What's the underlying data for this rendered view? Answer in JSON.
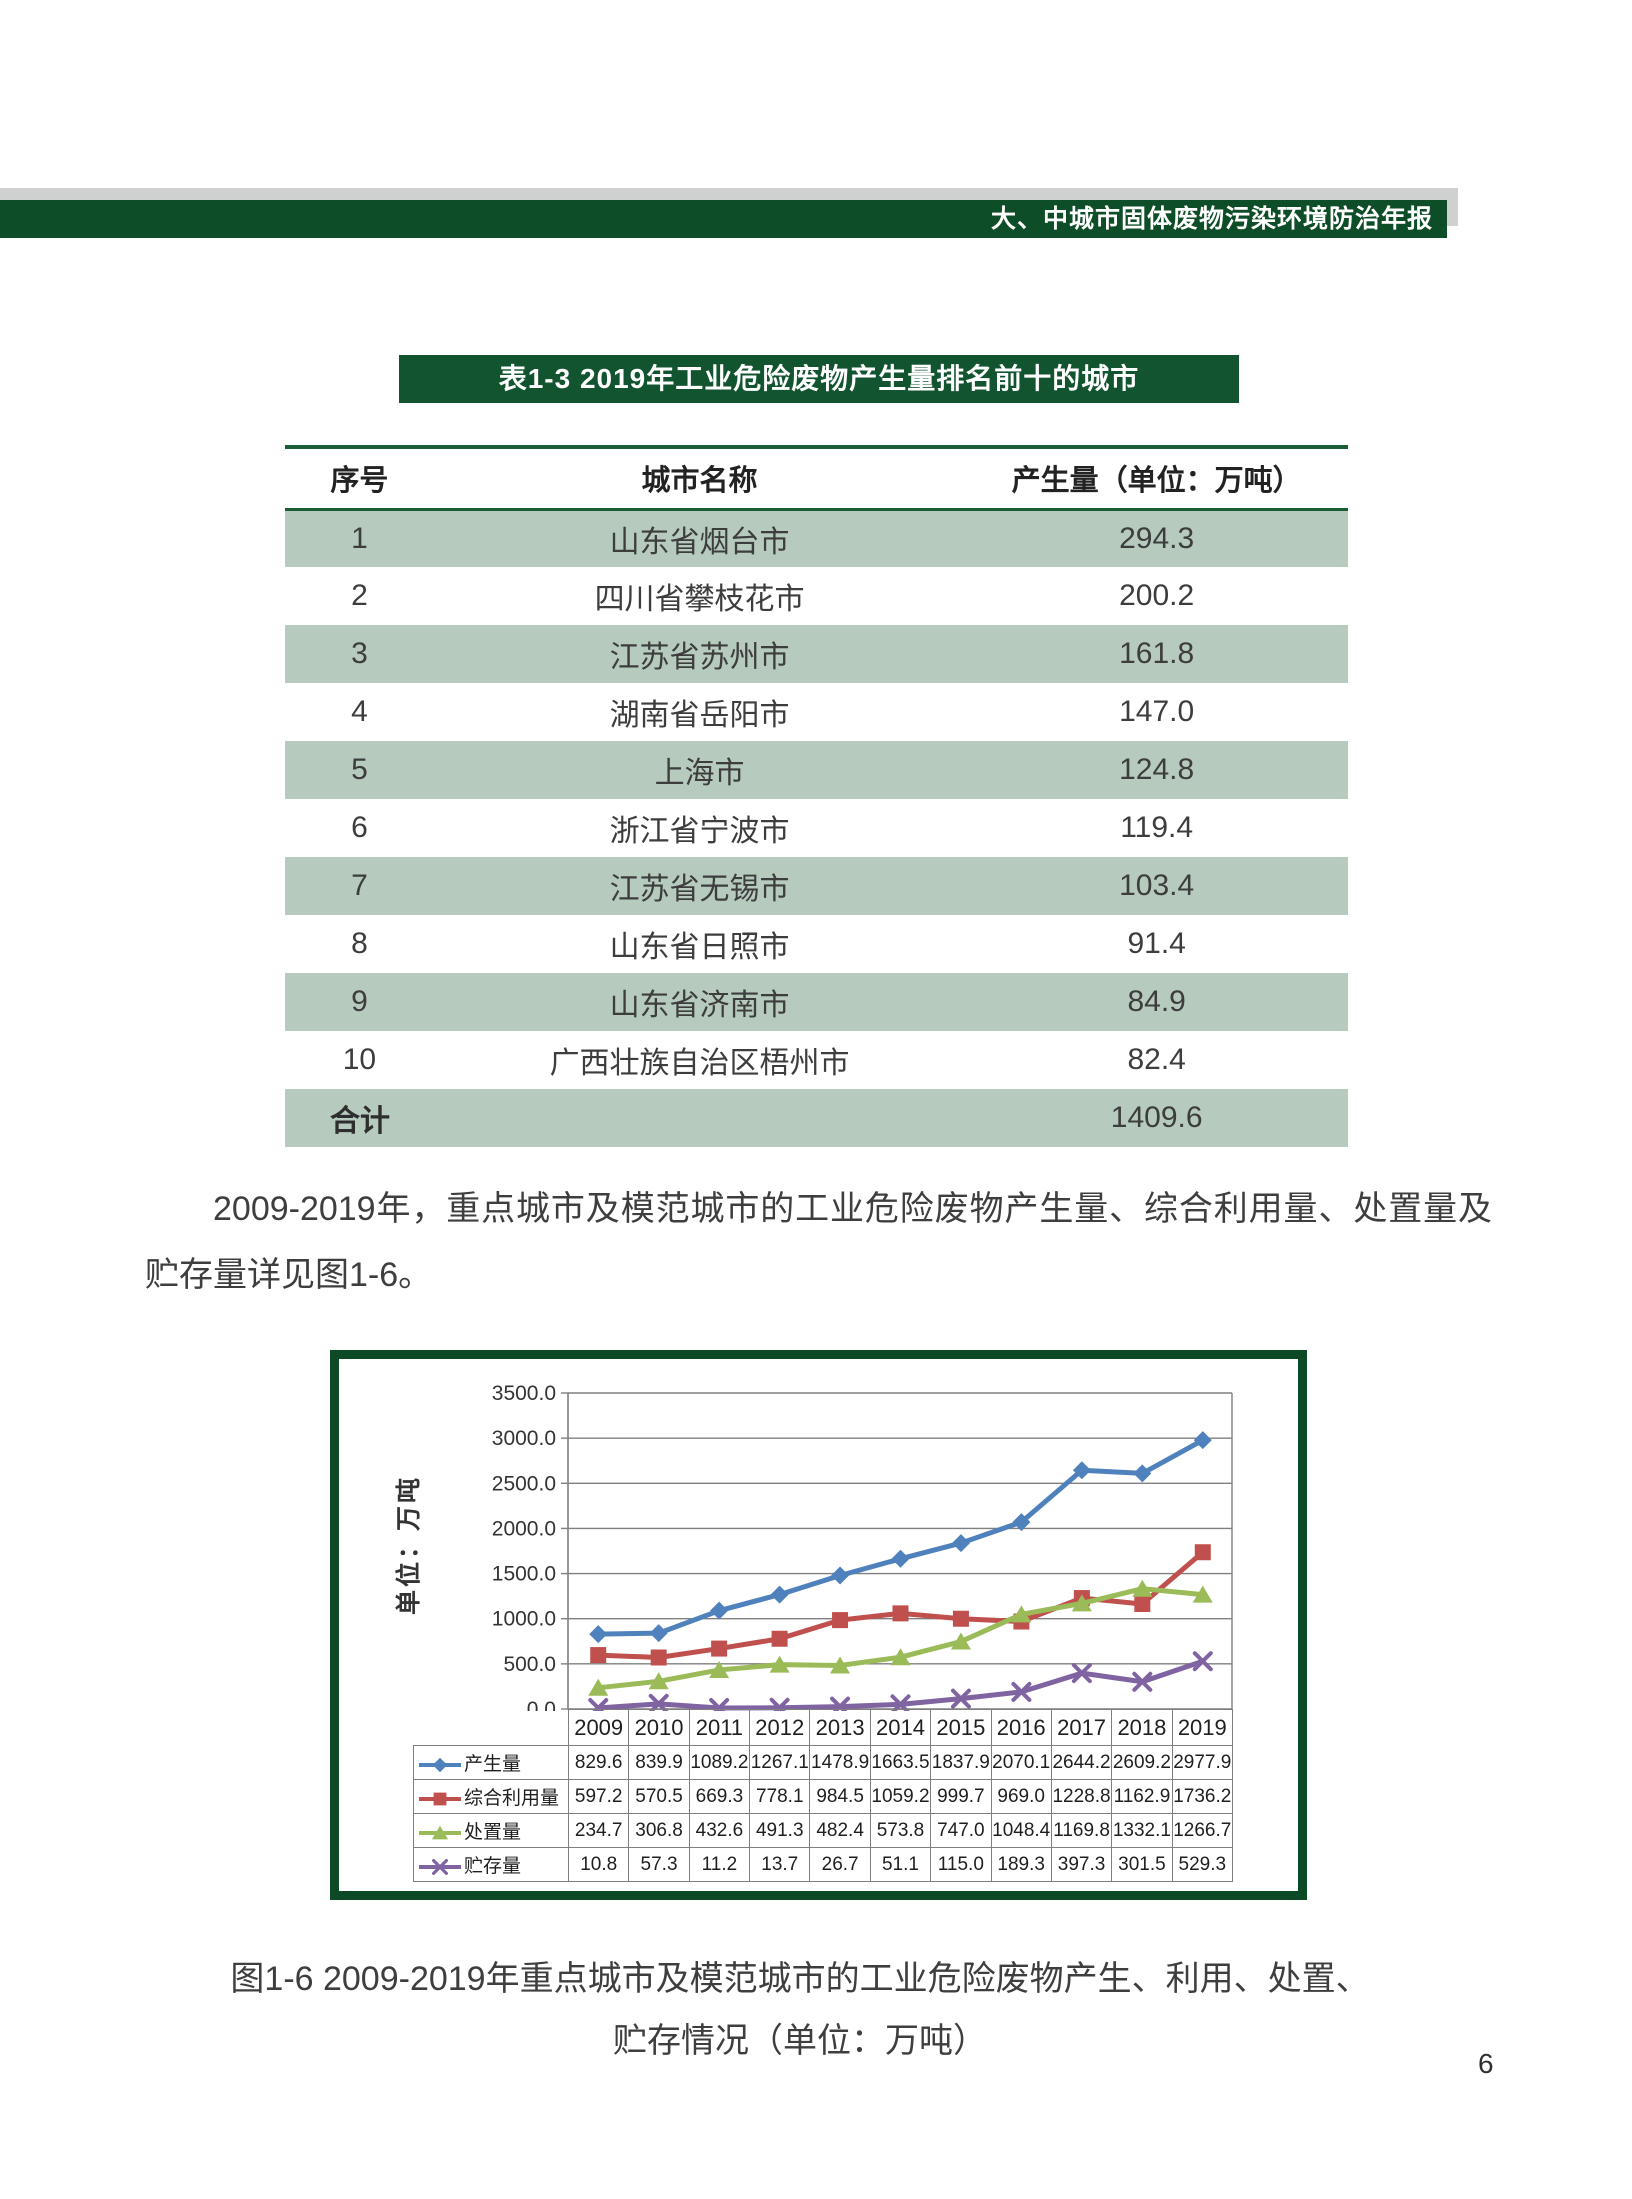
{
  "header": {
    "title": "大、中城市固体废物污染环境防治年报"
  },
  "colors": {
    "dark_green": "#0d4d27",
    "light_green_row": "#b6cbbe",
    "header_gray": "#cfd1d0"
  },
  "table": {
    "title": "表1-3 2019年工业危险废物产生量排名前十的城市",
    "columns": [
      "序号",
      "城市名称",
      "产生量（单位：万吨）"
    ],
    "rows": [
      [
        "1",
        "山东省烟台市",
        "294.3"
      ],
      [
        "2",
        "四川省攀枝花市",
        "200.2"
      ],
      [
        "3",
        "江苏省苏州市",
        "161.8"
      ],
      [
        "4",
        "湖南省岳阳市",
        "147.0"
      ],
      [
        "5",
        "上海市",
        "124.8"
      ],
      [
        "6",
        "浙江省宁波市",
        "119.4"
      ],
      [
        "7",
        "江苏省无锡市",
        "103.4"
      ],
      [
        "8",
        "山东省日照市",
        "91.4"
      ],
      [
        "9",
        "山东省济南市",
        "84.9"
      ],
      [
        "10",
        "广西壮族自治区梧州市",
        "82.4"
      ]
    ],
    "total_label": "合计",
    "total_value": "1409.6"
  },
  "paragraph": "2009-2019年，重点城市及模范城市的工业危险废物产生量、综合利用量、处置量及贮存量详见图1-6。",
  "chart_data": {
    "type": "line",
    "title": "",
    "y_axis_title": "单位：万吨",
    "categories": [
      "2009",
      "2010",
      "2011",
      "2012",
      "2013",
      "2014",
      "2015",
      "2016",
      "2017",
      "2018",
      "2019"
    ],
    "series": [
      {
        "name": "产生量",
        "marker": "diamond",
        "color": "#4f81bd",
        "values": [
          829.6,
          839.9,
          1089.2,
          1267.1,
          1478.9,
          1663.5,
          1837.9,
          2070.1,
          2644.2,
          2609.2,
          2977.9
        ]
      },
      {
        "name": "综合利用量",
        "marker": "square",
        "color": "#c0504d",
        "values": [
          597.2,
          570.5,
          669.3,
          778.1,
          984.5,
          1059.2,
          999.7,
          969.0,
          1228.8,
          1162.9,
          1736.2
        ]
      },
      {
        "name": "处置量",
        "marker": "triangle",
        "color": "#9bbb59",
        "values": [
          234.7,
          306.8,
          432.6,
          491.3,
          482.4,
          573.8,
          747.0,
          1048.4,
          1169.8,
          1332.1,
          1266.7
        ]
      },
      {
        "name": "贮存量",
        "marker": "x",
        "color": "#8064a2",
        "values": [
          10.8,
          57.3,
          11.2,
          13.7,
          26.7,
          51.1,
          115.0,
          189.3,
          397.3,
          301.5,
          529.3
        ]
      }
    ],
    "ylim": [
      0,
      3500
    ],
    "ytick_step": 500,
    "grid": true,
    "legend_position": "table-left",
    "value_decimals": 1
  },
  "caption": {
    "line1": "图1-6 2009-2019年重点城市及模范城市的工业危险废物产生、利用、处置、",
    "line2": "贮存情况（单位：万吨）"
  },
  "page_number": "6"
}
